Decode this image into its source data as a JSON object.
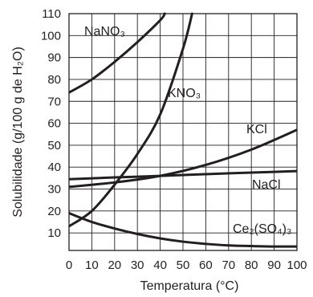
{
  "chart_data": {
    "type": "line",
    "xlabel": "Temperatura (°C)",
    "ylabel": "Solubilidade (g/100 g de H₂O)",
    "xlim": [
      0,
      100
    ],
    "ylim": [
      2,
      110
    ],
    "x_ticks": [
      "0",
      "10",
      "20",
      "30",
      "40",
      "50",
      "60",
      "70",
      "80",
      "90",
      "100"
    ],
    "y_ticks": [
      "10",
      "20",
      "30",
      "40",
      "50",
      "60",
      "70",
      "80",
      "90",
      "100",
      "110"
    ],
    "grid": true,
    "series": [
      {
        "name": "NaNO₃",
        "x": [
          0,
          10,
          20,
          30,
          40,
          42
        ],
        "y": [
          74,
          80,
          88,
          97,
          107,
          110
        ]
      },
      {
        "name": "KNO₃",
        "x": [
          0,
          10,
          20,
          30,
          40,
          50,
          54
        ],
        "y": [
          13,
          20,
          32,
          46,
          64,
          94,
          110
        ]
      },
      {
        "name": "KCl",
        "x": [
          0,
          20,
          40,
          60,
          80,
          100
        ],
        "y": [
          31,
          33,
          36,
          41,
          48,
          57
        ]
      },
      {
        "name": "NaCl",
        "x": [
          0,
          20,
          40,
          60,
          80,
          100
        ],
        "y": [
          34.5,
          35.3,
          36,
          36.8,
          37.5,
          38.2
        ]
      },
      {
        "name": "Ce₂(SO₄)₃",
        "x": [
          0,
          10,
          20,
          30,
          40,
          50,
          60,
          70,
          80,
          90,
          100
        ],
        "y": [
          19,
          15,
          12,
          9.5,
          7.5,
          6,
          5,
          4.3,
          4,
          3.8,
          3.8
        ]
      }
    ]
  }
}
